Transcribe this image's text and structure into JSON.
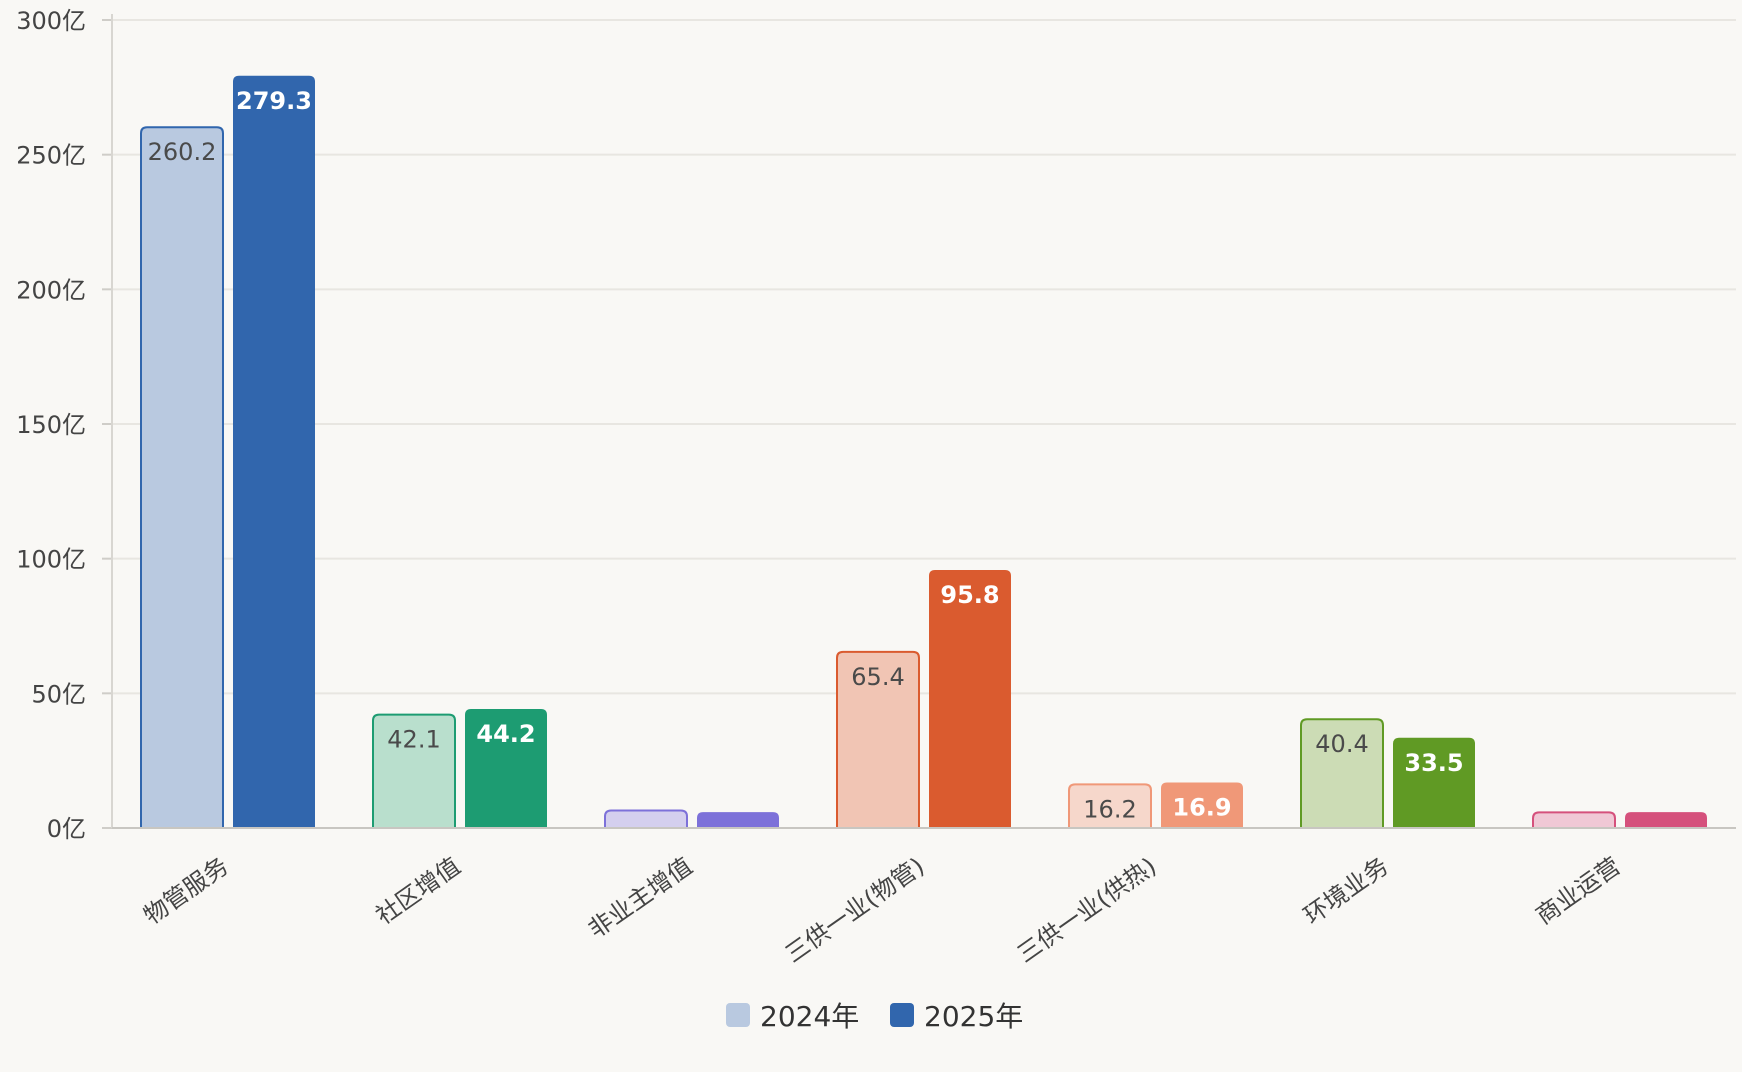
{
  "chart_data": {
    "type": "bar",
    "categories": [
      "物管服务",
      "社区增值",
      "非业主增值",
      "三供一业(物管)",
      "三供一业(供热)",
      "环境业务",
      "商业运营"
    ],
    "series": [
      {
        "name": "2024年",
        "values": [
          260.2,
          42.1,
          6.5,
          65.4,
          16.2,
          40.4,
          5.8
        ],
        "value_labels": [
          "260.2",
          "42.1",
          "",
          "65.4",
          "16.2",
          "40.4",
          ""
        ]
      },
      {
        "name": "2025年",
        "values": [
          279.3,
          44.2,
          5.9,
          95.8,
          16.9,
          33.5,
          5.9
        ],
        "value_labels": [
          "279.3",
          "44.2",
          "",
          "95.8",
          "16.9",
          "33.5",
          ""
        ]
      }
    ],
    "yticks": [
      "0亿",
      "50亿",
      "100亿",
      "150亿",
      "200亿",
      "250亿",
      "300亿"
    ],
    "ylim": [
      0,
      300
    ],
    "grid": true,
    "legend_position": "bottom-center",
    "category_colors": [
      {
        "dark": "#3166ad",
        "light": "#b9c9e0"
      },
      {
        "dark": "#1d9c72",
        "light": "#b9dfcd"
      },
      {
        "dark": "#7d71d9",
        "light": "#d4cfee"
      },
      {
        "dark": "#da5b2f",
        "light": "#f1c5b4"
      },
      {
        "dark": "#f09878",
        "light": "#f6d7cb"
      },
      {
        "dark": "#609a24",
        "light": "#ccdcb5"
      },
      {
        "dark": "#d5517c",
        "light": "#f0c8d5"
      }
    ],
    "legend_colors": [
      "#b9c9e0",
      "#3166ad"
    ]
  }
}
